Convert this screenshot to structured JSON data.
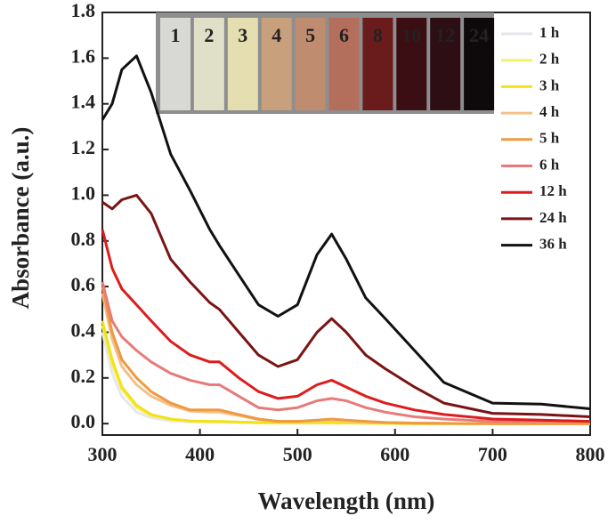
{
  "chart_data": {
    "type": "line",
    "x_label": "Wavelength (nm)",
    "y_label": "Absorbance (a.u.)",
    "inset_labels": [
      "1",
      "2",
      "3",
      "4",
      "5",
      "6",
      "8",
      "10",
      "12",
      "24"
    ],
    "x": [
      300,
      310,
      320,
      335,
      350,
      370,
      390,
      410,
      420,
      440,
      460,
      480,
      500,
      520,
      535,
      550,
      570,
      590,
      620,
      650,
      700,
      750,
      800
    ],
    "series": [
      {
        "name": "1 h",
        "color": "#e6e6ee",
        "values": [
          0.4,
          0.22,
          0.12,
          0.05,
          0.025,
          0.012,
          0.008,
          0.006,
          0.006,
          0.004,
          0.003,
          0.002,
          0.002,
          0.002,
          0.002,
          0.002,
          0.001,
          0.001,
          0,
          0,
          0,
          0,
          0
        ]
      },
      {
        "name": "2 h",
        "color": "#f5f06a",
        "values": [
          0.43,
          0.26,
          0.15,
          0.07,
          0.035,
          0.018,
          0.01,
          0.008,
          0.008,
          0.006,
          0.004,
          0.003,
          0.003,
          0.003,
          0.003,
          0.003,
          0.002,
          0.001,
          0,
          0,
          0,
          0,
          0
        ]
      },
      {
        "name": "3 h",
        "color": "#f2e21a",
        "values": [
          0.45,
          0.28,
          0.16,
          0.08,
          0.04,
          0.02,
          0.012,
          0.01,
          0.01,
          0.007,
          0.005,
          0.004,
          0.004,
          0.004,
          0.004,
          0.003,
          0.002,
          0.001,
          0,
          0,
          0,
          0,
          0
        ]
      },
      {
        "name": "4 h",
        "color": "#f4c08a",
        "values": [
          0.57,
          0.37,
          0.25,
          0.17,
          0.12,
          0.08,
          0.055,
          0.05,
          0.05,
          0.035,
          0.018,
          0.01,
          0.01,
          0.013,
          0.015,
          0.012,
          0.008,
          0.005,
          0.002,
          0.001,
          0,
          0,
          0
        ]
      },
      {
        "name": "5 h",
        "color": "#ee9a40",
        "values": [
          0.6,
          0.4,
          0.28,
          0.2,
          0.14,
          0.09,
          0.06,
          0.06,
          0.06,
          0.04,
          0.02,
          0.01,
          0.01,
          0.015,
          0.02,
          0.015,
          0.01,
          0.005,
          0.002,
          0.001,
          0,
          0,
          0
        ]
      },
      {
        "name": "6 h",
        "color": "#e87a7a",
        "values": [
          0.62,
          0.45,
          0.38,
          0.32,
          0.27,
          0.22,
          0.19,
          0.17,
          0.17,
          0.12,
          0.07,
          0.06,
          0.07,
          0.1,
          0.11,
          0.1,
          0.07,
          0.05,
          0.03,
          0.02,
          0.01,
          0.01,
          0.01
        ]
      },
      {
        "name": "12 h",
        "color": "#dd1c1c",
        "values": [
          0.85,
          0.68,
          0.59,
          0.52,
          0.45,
          0.36,
          0.3,
          0.27,
          0.27,
          0.2,
          0.14,
          0.11,
          0.12,
          0.17,
          0.19,
          0.16,
          0.12,
          0.09,
          0.06,
          0.04,
          0.02,
          0.015,
          0.01
        ]
      },
      {
        "name": "24 h",
        "color": "#7a1414",
        "values": [
          0.97,
          0.94,
          0.98,
          1.0,
          0.92,
          0.72,
          0.62,
          0.53,
          0.5,
          0.4,
          0.3,
          0.25,
          0.28,
          0.4,
          0.46,
          0.4,
          0.3,
          0.24,
          0.16,
          0.09,
          0.045,
          0.04,
          0.03
        ]
      },
      {
        "name": "36 h",
        "color": "#111111",
        "values": [
          1.33,
          1.4,
          1.55,
          1.61,
          1.45,
          1.18,
          1.02,
          0.85,
          0.78,
          0.65,
          0.52,
          0.47,
          0.52,
          0.74,
          0.83,
          0.72,
          0.55,
          0.46,
          0.32,
          0.18,
          0.09,
          0.085,
          0.065
        ]
      }
    ],
    "xlim": [
      300,
      800
    ],
    "ylim": [
      -0.05,
      1.8
    ],
    "xticks": [
      300,
      400,
      500,
      600,
      700,
      800
    ],
    "yticks": [
      {
        "value": 0,
        "label": "0.0"
      },
      0.2,
      0.4,
      0.6,
      0.8,
      {
        "value": 1,
        "label": "1.0"
      },
      1.2,
      1.4,
      1.6,
      1.8
    ]
  }
}
